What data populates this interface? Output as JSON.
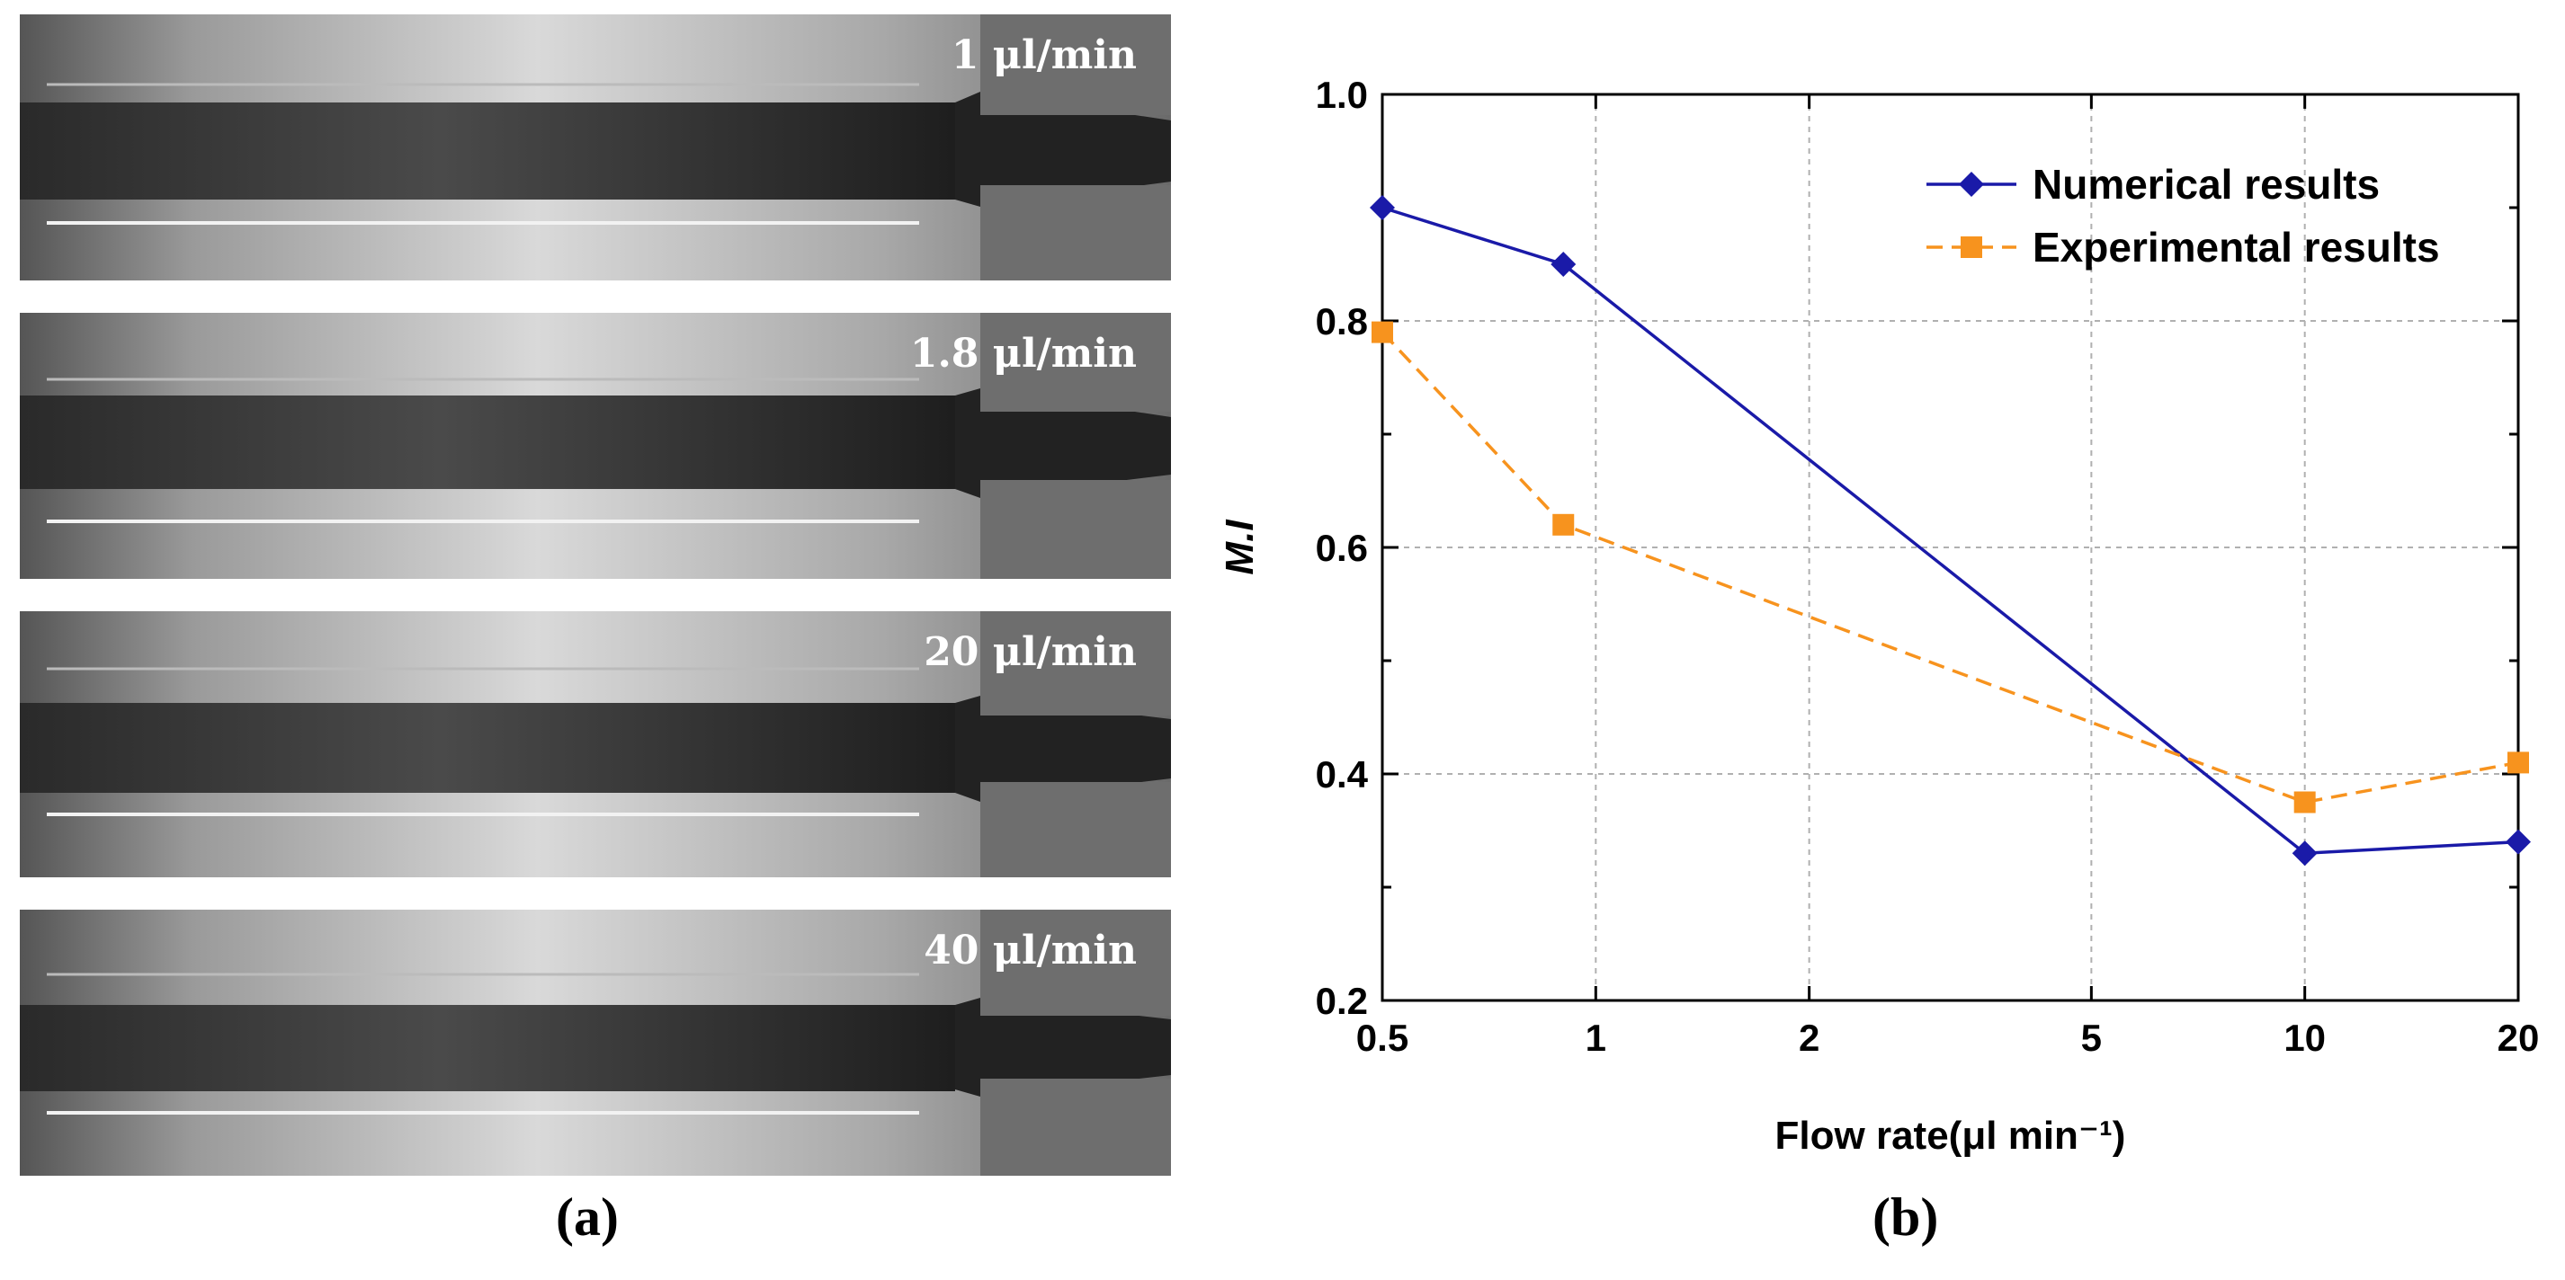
{
  "panel_a": {
    "caption": "(a)",
    "images": [
      {
        "flow_label": "1 μl/min"
      },
      {
        "flow_label": "1.8 μl/min"
      },
      {
        "flow_label": "20 μl/min"
      },
      {
        "flow_label": "40 μl/min"
      }
    ]
  },
  "panel_b": {
    "caption": "(b)"
  },
  "chart_data": {
    "type": "line",
    "title": "",
    "xlabel": "Flow rate(μl min⁻¹)",
    "ylabel": "M.I",
    "xscale": "log",
    "xlim": [
      0.5,
      20
    ],
    "ylim": [
      0.2,
      1.0
    ],
    "x_ticks": [
      0.5,
      1,
      2,
      5,
      10,
      20
    ],
    "x_tick_labels": [
      "0.5",
      "1",
      "2",
      "5",
      "10",
      "20"
    ],
    "y_ticks": [
      0.2,
      0.4,
      0.6,
      0.8,
      1.0
    ],
    "y_tick_labels": [
      "0.2",
      "0.4",
      "0.6",
      "0.8",
      "1.0"
    ],
    "grid": true,
    "legend_position": "top-right",
    "series": [
      {
        "name": "Numerical results",
        "color": "#1a1aa8",
        "marker": "diamond",
        "line_style": "solid",
        "x": [
          0.5,
          0.9,
          10,
          20
        ],
        "y": [
          0.9,
          0.85,
          0.33,
          0.34
        ]
      },
      {
        "name": "Experimental results",
        "color": "#f7931e",
        "marker": "square",
        "line_style": "dashed",
        "x": [
          0.5,
          0.9,
          10,
          20
        ],
        "y": [
          0.79,
          0.62,
          0.375,
          0.41
        ]
      }
    ]
  }
}
